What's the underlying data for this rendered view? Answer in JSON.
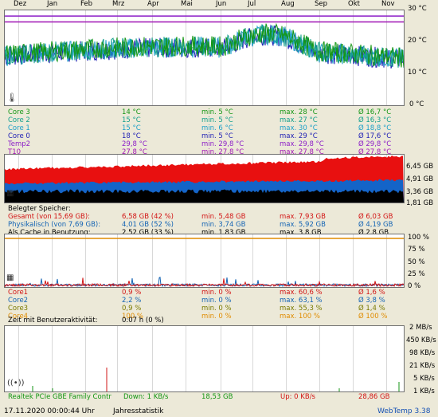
{
  "months": [
    "Dez",
    "Jan",
    "Feb",
    "Mrz",
    "Apr",
    "Mai",
    "Jun",
    "Jul",
    "Aug",
    "Sep",
    "Okt",
    "Nov"
  ],
  "temp": {
    "axis": [
      "30 °C",
      "20 °C",
      "10 °C",
      "0 °C"
    ],
    "rows": [
      {
        "name": "Core 3",
        "cur": "14 °C",
        "min": "min. 5 °C",
        "max": "max. 28 °C",
        "avg": "Ø 16,7 °C",
        "color": "#149614"
      },
      {
        "name": "Core 2",
        "cur": "15 °C",
        "min": "min. 5 °C",
        "max": "max. 27 °C",
        "avg": "Ø 16,3 °C",
        "color": "#14a08c"
      },
      {
        "name": "Core 1",
        "cur": "15 °C",
        "min": "min. 6 °C",
        "max": "max. 30 °C",
        "avg": "Ø 18,8 °C",
        "color": "#1ea0c8"
      },
      {
        "name": "Core 0",
        "cur": "18 °C",
        "min": "min. 5 °C",
        "max": "max. 29 °C",
        "avg": "Ø 17,6 °C",
        "color": "#1e1eb4"
      },
      {
        "name": "Temp2",
        "cur": "29,8 °C",
        "min": "min. 29,8 °C",
        "max": "max. 29,8 °C",
        "avg": "Ø 29,8 °C",
        "color": "#8c1ec8"
      },
      {
        "name": "T10",
        "cur": "27,8 °C",
        "min": "min. 27,8 °C",
        "max": "max. 27,8 °C",
        "avg": "Ø 27,8 °C",
        "color": "#a014b4"
      }
    ]
  },
  "mem": {
    "axis": [
      "6,45 GB",
      "4,91 GB",
      "3,36 GB",
      "1,81 GB"
    ],
    "header": "Belegter Speicher:",
    "rows": [
      {
        "name": "Gesamt (von 15,69 GB):",
        "cur": "6,58 GB (42 %)",
        "min": "min. 5,48 GB",
        "max": "max. 7,93 GB",
        "avg": "Ø 6,03 GB",
        "color": "#d21414"
      },
      {
        "name": "Physikalisch (von 7,69 GB):",
        "cur": "4,01 GB (52 %)",
        "min": "min. 3,74 GB",
        "max": "max. 5,92 GB",
        "avg": "Ø 4,19 GB",
        "color": "#1464b4"
      },
      {
        "name": "Als Cache in Benutzung:",
        "cur": "2,52 GB (33 %)",
        "min": "min. 1,83 GB",
        "max": "max. 3,8 GB",
        "avg": "Ø 2,8 GB",
        "color": "#000000"
      }
    ]
  },
  "cpu": {
    "axis": [
      "100 %",
      "75 %",
      "50 %",
      "25 %",
      "0 %"
    ],
    "rows": [
      {
        "name": "Core1",
        "cur": "0,9 %",
        "min": "min. 0 %",
        "max": "max. 60,6 %",
        "avg": "Ø 1,6 %",
        "color": "#d21414"
      },
      {
        "name": "Core2",
        "cur": "2,2 %",
        "min": "min. 0 %",
        "max": "max. 63,1 %",
        "avg": "Ø 3,8 %",
        "color": "#1464b4"
      },
      {
        "name": "Core3",
        "cur": "0,9 %",
        "min": "min. 0 %",
        "max": "max. 55,3 %",
        "avg": "Ø 1,4 %",
        "color": "#7a7a00"
      },
      {
        "name": "Core4",
        "cur": "100 %",
        "min": "min. 0 %",
        "max": "max. 100 %",
        "avg": "Ø 100 %",
        "color": "#e08c00"
      }
    ],
    "activity_label": "Zeit mit Benutzeraktivität:",
    "activity_value": "0:07 h (0 %)"
  },
  "net": {
    "axis": [
      "2 MB/s",
      "450 KB/s",
      "98 KB/s",
      "21 KB/s",
      "5 KB/s",
      "1 KB/s"
    ],
    "adapter": "Realtek PCIe GBE Family Contr",
    "down": "Down: 1 KB/s",
    "down_total": "18,53 GB",
    "up": "Up: 0 KB/s",
    "up_total": "28,86 GB"
  },
  "status": {
    "datetime": "17.11.2020 00:00:44 Uhr",
    "mode": "Jahresstatistik",
    "app": "WebTemp 3.38"
  }
}
